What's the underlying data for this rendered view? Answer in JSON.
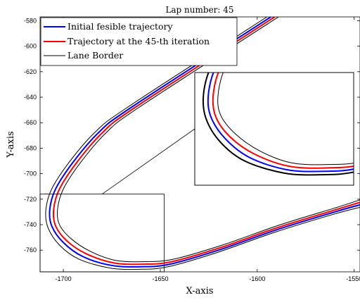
{
  "chart_data": {
    "type": "line",
    "title": "Lap number: 45",
    "xlabel": "X-axis",
    "ylabel": "Y-axis",
    "xlim": [
      -1712,
      -1547
    ],
    "ylim": [
      -777,
      -577
    ],
    "xticks": [
      -1700,
      -1650,
      -1600,
      -1550
    ],
    "xtick_labels": [
      "-1700",
      "-1650",
      "-1600",
      "-1550"
    ],
    "yticks": [
      -580,
      -600,
      -620,
      -640,
      -660,
      -680,
      -700,
      -720,
      -740,
      -760
    ],
    "ytick_labels": [
      "-580",
      "-600",
      "-620",
      "-640",
      "-660",
      "-680",
      "-700",
      "-720",
      "-740",
      "-760"
    ],
    "grid": false,
    "legend_position": "top-left",
    "series": [
      {
        "name": "Initial fesible trajectory",
        "color": "#0000ff",
        "x": [
          -1593,
          -1665,
          -1682,
          -1695,
          -1704,
          -1707,
          -1706,
          -1700,
          -1690,
          -1675,
          -1660,
          -1645,
          -1620,
          -1590,
          -1560,
          -1546
        ],
        "y": [
          -577,
          -648,
          -668,
          -691,
          -712,
          -728,
          -741,
          -754,
          -765,
          -772,
          -773,
          -771,
          -760,
          -744,
          -730,
          -724
        ]
      },
      {
        "name": "Trajectory at the 45-th iteration",
        "color": "#ff0000",
        "x": [
          -1591,
          -1663,
          -1680,
          -1693,
          -1702,
          -1705,
          -1704,
          -1698,
          -1688,
          -1674,
          -1659,
          -1644,
          -1619,
          -1589,
          -1559,
          -1546
        ],
        "y": [
          -577,
          -648,
          -668,
          -691,
          -712,
          -728,
          -741,
          -753,
          -763,
          -770,
          -771,
          -769,
          -758,
          -742,
          -728,
          -722
        ]
      },
      {
        "name": "Lane Border",
        "color": "#000000",
        "x": [
          -1595,
          -1667,
          -1684,
          -1697,
          -1706,
          -1709,
          -1708,
          -1702,
          -1692,
          -1676,
          -1661,
          -1646,
          -1621,
          -1591,
          -1561,
          -1546
        ],
        "y": [
          -577,
          -648,
          -668,
          -691,
          -712,
          -728,
          -742,
          -756,
          -767,
          -774,
          -775,
          -773,
          -762,
          -746,
          -732,
          -726
        ]
      },
      {
        "name": "",
        "color": "#000000",
        "x": [
          -1589,
          -1661,
          -1678,
          -1691,
          -1700,
          -1703,
          -1702,
          -1696,
          -1686,
          -1673,
          -1658,
          -1643,
          -1618,
          -1588,
          -1558,
          -1546
        ],
        "y": [
          -577,
          -648,
          -668,
          -691,
          -712,
          -728,
          -740,
          -751,
          -761,
          -768,
          -769,
          -767,
          -756,
          -740,
          -726,
          -720
        ]
      }
    ],
    "inset": {
      "zoom_region": {
        "x": [
          -1712,
          -1648
        ],
        "y": [
          -777,
          -716
        ]
      }
    }
  }
}
